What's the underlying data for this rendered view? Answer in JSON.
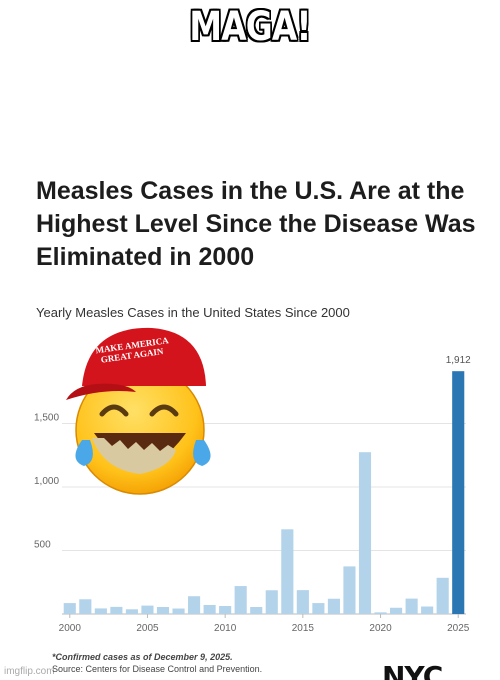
{
  "meme": {
    "caption": "MAGA!",
    "watermark": "imgflip.com",
    "hat_text": "MAKE AMERICA GREAT AGAIN"
  },
  "article": {
    "headline": "Measles Cases in the U.S. Are at the Highest Level Since the Disease Was Eliminated in 2000",
    "subtitle": "Yearly Measles Cases in the United States Since 2000",
    "footnote": "*Confirmed cases as of December 9, 2025.",
    "source": "Source: Centers for Disease Control and Prevention.",
    "logo": "NYC"
  },
  "colors": {
    "bar": "#b3d3ea",
    "highlight": "#2a77b4",
    "grid": "#e4e4e4"
  },
  "chart_data": {
    "type": "bar",
    "title": "Yearly Measles Cases in the United States Since 2000",
    "categories": [
      "2000",
      "2001",
      "2002",
      "2003",
      "2004",
      "2005",
      "2006",
      "2007",
      "2008",
      "2009",
      "2010",
      "2011",
      "2012",
      "2013",
      "2014",
      "2015",
      "2016",
      "2017",
      "2018",
      "2019",
      "2020",
      "2021",
      "2022",
      "2023",
      "2024",
      "2025"
    ],
    "values": [
      86,
      116,
      44,
      56,
      37,
      66,
      55,
      43,
      140,
      71,
      63,
      220,
      55,
      187,
      667,
      188,
      86,
      120,
      375,
      1274,
      13,
      49,
      121,
      59,
      285,
      1912
    ],
    "highlight_index": 25,
    "data_labels": [
      {
        "index": 25,
        "text": "1,912"
      }
    ],
    "yticks": [
      {
        "value": 500,
        "label": "500"
      },
      {
        "value": 1000,
        "label": "1,000"
      },
      {
        "value": 1500,
        "label": "1,500"
      }
    ],
    "xticks": [
      "2000",
      "2005",
      "2010",
      "2015",
      "2020",
      "2025"
    ],
    "ylim": [
      0,
      2000
    ],
    "grid": true
  }
}
